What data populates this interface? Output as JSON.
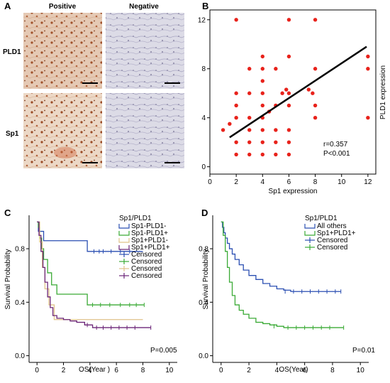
{
  "panels": {
    "A": {
      "letter": "A",
      "col_headers": [
        "Positive",
        "Negative"
      ],
      "row_labels": [
        "PLD1",
        "Sp1"
      ]
    },
    "B": {
      "letter": "B"
    },
    "C": {
      "letter": "C"
    },
    "D": {
      "letter": "D"
    }
  },
  "colors": {
    "ihc_positive_bg": "#ecd8c6",
    "ihc_positive_stain": "#9a4a24",
    "ihc_negative_bg": "#dcdbe6",
    "ihc_negative_stain": "#6e6a8e",
    "scatter_point": "#e8221b",
    "fit_line": "#000000"
  },
  "chart_data": [
    {
      "panel": "B",
      "type": "scatter",
      "xlabel": "Sp1 expression",
      "ylabel": "PLD1 expression",
      "xlim": [
        0,
        12.6
      ],
      "ylim": [
        -0.6,
        12.8
      ],
      "xticks": [
        0,
        2,
        4,
        6,
        8,
        10,
        12
      ],
      "yticks": [
        0,
        4,
        8,
        12
      ],
      "grid": false,
      "points": [
        [
          1,
          3
        ],
        [
          1.5,
          3.5
        ],
        [
          2,
          12
        ],
        [
          2,
          6
        ],
        [
          2,
          5
        ],
        [
          2,
          4
        ],
        [
          2,
          2
        ],
        [
          2,
          1
        ],
        [
          3,
          8
        ],
        [
          3,
          6
        ],
        [
          3,
          4
        ],
        [
          3,
          3
        ],
        [
          3,
          2
        ],
        [
          3,
          1
        ],
        [
          4,
          9
        ],
        [
          4,
          8
        ],
        [
          4,
          7
        ],
        [
          4,
          6
        ],
        [
          4,
          5
        ],
        [
          4,
          4
        ],
        [
          4,
          3
        ],
        [
          4,
          2
        ],
        [
          4,
          1
        ],
        [
          4.5,
          4.5
        ],
        [
          5,
          8
        ],
        [
          5,
          5
        ],
        [
          5,
          3
        ],
        [
          5,
          2
        ],
        [
          5,
          1
        ],
        [
          5.5,
          6
        ],
        [
          5.8,
          6.3
        ],
        [
          6,
          12
        ],
        [
          6,
          9
        ],
        [
          6,
          6
        ],
        [
          6,
          5
        ],
        [
          6,
          3
        ],
        [
          6,
          2
        ],
        [
          6,
          1
        ],
        [
          7.5,
          6.3
        ],
        [
          7.8,
          6
        ],
        [
          8,
          12
        ],
        [
          8,
          8
        ],
        [
          8,
          5
        ],
        [
          8,
          4
        ],
        [
          12,
          9
        ],
        [
          12,
          8
        ],
        [
          12,
          4
        ]
      ],
      "fit_line": {
        "x": [
          1.5,
          11.9
        ],
        "y": [
          2.4,
          9.8
        ]
      },
      "annotations": [
        "r=0.357",
        "P<0.001"
      ]
    },
    {
      "panel": "C",
      "type": "line",
      "step": true,
      "xlabel": "OS(Year )",
      "ylabel": "Survival Probability",
      "xlim": [
        -0.6,
        10.6
      ],
      "ylim": [
        -0.05,
        1.05
      ],
      "xticks": [
        0,
        2,
        4,
        6,
        8,
        10
      ],
      "yticks": [
        0.0,
        0.4,
        0.8
      ],
      "legend_title": "Sp1/PLD1",
      "legend_position": "top-right",
      "series": [
        {
          "name": "Sp1-PLD1-",
          "color": "#2b4fb2",
          "x": [
            0,
            0.1,
            0.3,
            0.5,
            3.8,
            8.0
          ],
          "y": [
            1.0,
            0.93,
            0.93,
            0.86,
            0.78,
            0.78
          ],
          "censor": [
            [
              4.3,
              0.78
            ],
            [
              4.7,
              0.78
            ],
            [
              5.0,
              0.78
            ],
            [
              5.6,
              0.78
            ],
            [
              6.3,
              0.78
            ],
            [
              7.0,
              0.78
            ]
          ]
        },
        {
          "name": "Sp1-PLD1+",
          "color": "#3aaa35",
          "x": [
            0,
            0.1,
            0.2,
            0.35,
            0.5,
            0.8,
            1.1,
            1.5,
            3.8,
            8.1
          ],
          "y": [
            1.0,
            0.96,
            0.88,
            0.8,
            0.72,
            0.62,
            0.53,
            0.46,
            0.38,
            0.38
          ],
          "censor": [
            [
              4.2,
              0.38
            ],
            [
              4.8,
              0.38
            ],
            [
              5.5,
              0.38
            ],
            [
              6.3,
              0.38
            ],
            [
              7.0,
              0.38
            ],
            [
              7.5,
              0.38
            ],
            [
              8.1,
              0.38
            ]
          ]
        },
        {
          "name": "Sp1+PLD1-",
          "color": "#e0c38a",
          "x": [
            0,
            0.2,
            0.4,
            0.6,
            0.9,
            1.3,
            8.0
          ],
          "y": [
            1.0,
            0.85,
            0.66,
            0.5,
            0.38,
            0.27,
            0.27
          ],
          "censor": []
        },
        {
          "name": "Sp1+PLD1+",
          "color": "#6b2577",
          "x": [
            0,
            0.15,
            0.3,
            0.45,
            0.6,
            0.8,
            1.0,
            1.2,
            1.5,
            2.0,
            2.5,
            3.0,
            3.6,
            4.2,
            8.6
          ],
          "y": [
            1.0,
            0.9,
            0.78,
            0.66,
            0.55,
            0.44,
            0.36,
            0.3,
            0.28,
            0.27,
            0.26,
            0.25,
            0.23,
            0.21,
            0.21
          ],
          "censor": [
            [
              3.8,
              0.23
            ],
            [
              4.5,
              0.21
            ],
            [
              5.0,
              0.21
            ],
            [
              5.6,
              0.21
            ],
            [
              6.2,
              0.21
            ],
            [
              6.8,
              0.21
            ],
            [
              7.4,
              0.21
            ],
            [
              8.6,
              0.21
            ]
          ]
        }
      ],
      "censored_label": "Censored",
      "annotation": "P=0.005"
    },
    {
      "panel": "D",
      "type": "line",
      "step": true,
      "xlabel": "OS(Year)",
      "ylabel": "Survival Probability",
      "xlim": [
        -0.6,
        10.6
      ],
      "ylim": [
        -0.05,
        1.05
      ],
      "xticks": [
        0,
        2,
        4,
        6,
        8,
        10
      ],
      "yticks": [
        0.0,
        0.4,
        0.8
      ],
      "legend_title": "Sp1/PLD1",
      "legend_position": "top-right",
      "series": [
        {
          "name": "All others",
          "color": "#2b4fb2",
          "x": [
            0,
            0.1,
            0.2,
            0.3,
            0.45,
            0.6,
            0.8,
            1.0,
            1.3,
            1.6,
            2.0,
            2.5,
            3.0,
            3.5,
            4.0,
            4.5,
            5.0,
            8.6
          ],
          "y": [
            1.0,
            0.96,
            0.92,
            0.88,
            0.84,
            0.8,
            0.76,
            0.72,
            0.68,
            0.64,
            0.6,
            0.57,
            0.54,
            0.52,
            0.5,
            0.49,
            0.48,
            0.48
          ],
          "censor": [
            [
              4.6,
              0.48
            ],
            [
              5.2,
              0.48
            ],
            [
              5.8,
              0.48
            ],
            [
              6.4,
              0.48
            ],
            [
              7.0,
              0.48
            ],
            [
              7.6,
              0.48
            ],
            [
              8.2,
              0.48
            ],
            [
              8.6,
              0.48
            ]
          ]
        },
        {
          "name": "Sp1+PLD1+",
          "color": "#3aaa35",
          "x": [
            0,
            0.15,
            0.3,
            0.45,
            0.6,
            0.8,
            1.0,
            1.3,
            1.6,
            2.0,
            2.5,
            3.0,
            3.5,
            4.0,
            4.5,
            8.8
          ],
          "y": [
            1.0,
            0.9,
            0.78,
            0.66,
            0.55,
            0.45,
            0.38,
            0.34,
            0.31,
            0.28,
            0.25,
            0.24,
            0.23,
            0.22,
            0.21,
            0.21
          ],
          "censor": [
            [
              3.8,
              0.22
            ],
            [
              4.8,
              0.21
            ],
            [
              5.4,
              0.21
            ],
            [
              6.0,
              0.21
            ],
            [
              6.6,
              0.21
            ],
            [
              7.2,
              0.21
            ],
            [
              7.8,
              0.21
            ],
            [
              8.8,
              0.21
            ]
          ]
        }
      ],
      "censored_label": "Censored",
      "annotation": "P=0.01"
    }
  ]
}
